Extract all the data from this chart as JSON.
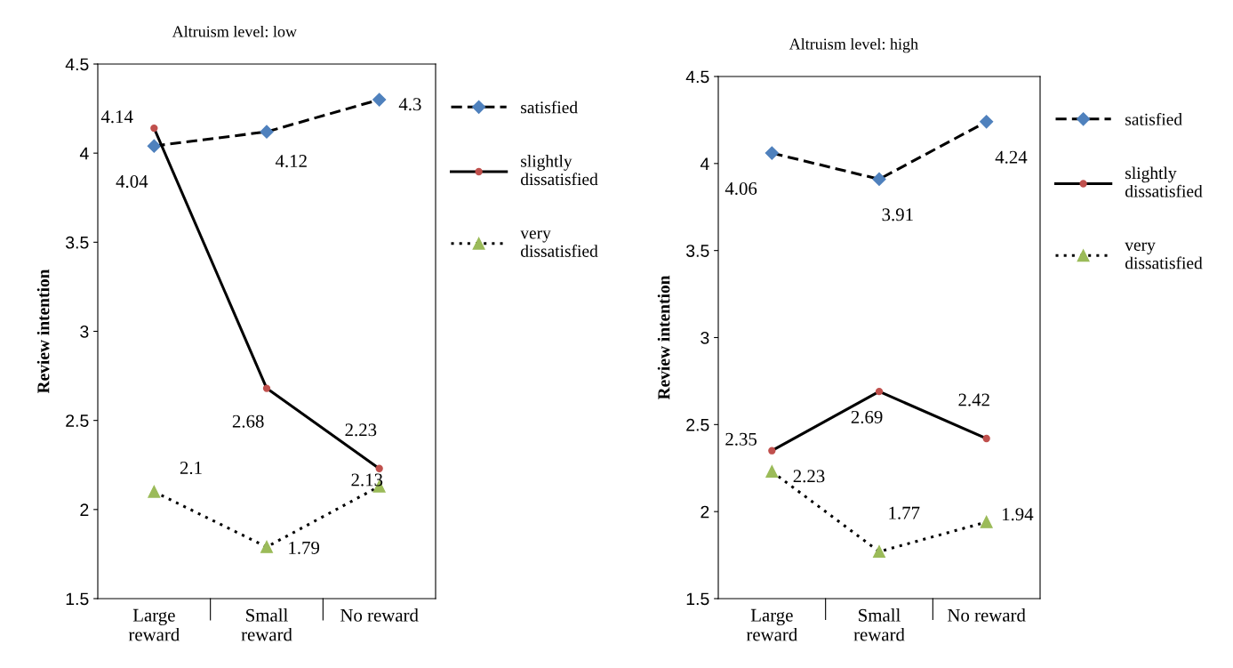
{
  "chart_data": [
    {
      "type": "line",
      "title": "Altruism level: low",
      "ylabel": "Review intention",
      "categories": [
        "Large reward",
        "Small reward",
        "No reward"
      ],
      "ylim": [
        1.5,
        4.5
      ],
      "yticks": [
        1.5,
        2,
        2.5,
        3,
        3.5,
        4,
        4.5
      ],
      "grid": false,
      "legend": "right",
      "data_labels": true,
      "series": [
        {
          "name": "satisfied",
          "color": "#4f81bd",
          "marker": "diamond",
          "line_style": "dashed",
          "values": [
            4.04,
            4.12,
            4.3
          ]
        },
        {
          "name": "slightly dissatisfied",
          "color": "#c0504d",
          "marker": "circle",
          "line_style": "solid",
          "values": [
            4.14,
            2.68,
            2.23
          ]
        },
        {
          "name": "very dissatisfied",
          "color": "#9bbb59",
          "marker": "triangle",
          "line_style": "dotted",
          "values": [
            2.1,
            1.79,
            2.13
          ]
        }
      ]
    },
    {
      "type": "line",
      "title": "Altruism level: high",
      "ylabel": "Review intention",
      "categories": [
        "Large reward",
        "Small reward",
        "No reward"
      ],
      "ylim": [
        1.5,
        4.5
      ],
      "yticks": [
        1.5,
        2,
        2.5,
        3,
        3.5,
        4,
        4.5
      ],
      "grid": false,
      "legend": "right",
      "data_labels": true,
      "series": [
        {
          "name": "satisfied",
          "color": "#4f81bd",
          "marker": "diamond",
          "line_style": "dashed",
          "values": [
            4.06,
            3.91,
            4.24
          ]
        },
        {
          "name": "slightly dissatisfied",
          "color": "#c0504d",
          "marker": "circle",
          "line_style": "solid",
          "values": [
            2.35,
            2.69,
            2.42
          ]
        },
        {
          "name": "very dissatisfied",
          "color": "#9bbb59",
          "marker": "triangle",
          "line_style": "dotted",
          "values": [
            2.23,
            1.77,
            1.94
          ]
        }
      ]
    }
  ]
}
